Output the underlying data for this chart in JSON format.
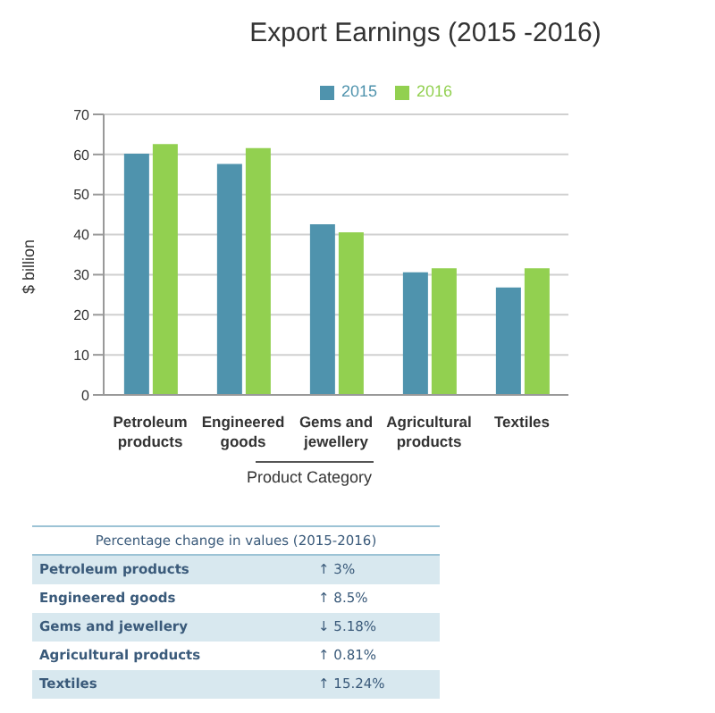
{
  "chart_data": {
    "type": "bar",
    "title": "Export Earnings (2015 -2016)",
    "xlabel": "Product Category",
    "ylabel": "$ billion",
    "categories": [
      "Petroleum products",
      "Engineered goods",
      "Gems and jewellery",
      "Agricultural products",
      "Textiles"
    ],
    "series": [
      {
        "name": "2015",
        "color": "#4f93ad",
        "values": [
          60.2,
          57.6,
          42.6,
          30.6,
          26.8
        ]
      },
      {
        "name": "2016",
        "color": "#92d050",
        "values": [
          62.6,
          61.6,
          40.6,
          31.6,
          31.6
        ]
      }
    ],
    "ylim": [
      0,
      70
    ],
    "yticks": [
      0,
      10,
      20,
      30,
      40,
      50,
      60,
      70
    ],
    "grid": "y",
    "legend": "top",
    "annotations": [
      "Percentage change in values (2015-2016)",
      "Petroleum products",
      "↑ 3%",
      "Engineered goods",
      "↑ 8.5%",
      "Gems and jewellery",
      "↓ 5.18%",
      "Agricultural products",
      "↑ 0.81%",
      "Textiles",
      "↑ 15.24%"
    ]
  }
}
